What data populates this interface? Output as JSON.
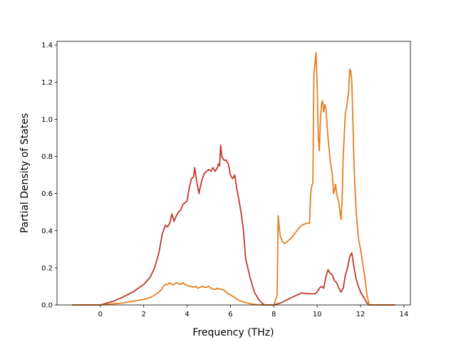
{
  "chart_data": {
    "type": "line",
    "title": "",
    "xlabel": "Frequency (THz)",
    "ylabel": "Partial Density of States",
    "xlim": [
      -2.0,
      14.3
    ],
    "ylim": [
      0.0,
      1.42
    ],
    "xticks": [
      0,
      2,
      4,
      6,
      8,
      10,
      12,
      14
    ],
    "yticks": [
      0.0,
      0.2,
      0.4,
      0.6,
      0.8,
      1.0,
      1.2,
      1.4
    ],
    "xtick_labels": [
      "0",
      "2",
      "4",
      "6",
      "8",
      "10",
      "12",
      "14"
    ],
    "ytick_labels": [
      "0.0",
      "0.2",
      "0.4",
      "0.6",
      "0.8",
      "1.0",
      "1.2",
      "1.4"
    ],
    "grid": false,
    "legend": false,
    "series": [
      {
        "color": "#c0392b",
        "x": [
          -1.3,
          0.0,
          0.3,
          0.6,
          1.0,
          1.5,
          2.0,
          2.3,
          2.5,
          2.7,
          2.85,
          3.0,
          3.1,
          3.2,
          3.3,
          3.4,
          3.5,
          3.6,
          3.7,
          3.8,
          3.9,
          4.0,
          4.1,
          4.2,
          4.3,
          4.35,
          4.45,
          4.55,
          4.6,
          4.7,
          4.8,
          4.9,
          5.0,
          5.1,
          5.2,
          5.3,
          5.4,
          5.45,
          5.5,
          5.55,
          5.6,
          5.7,
          5.8,
          5.9,
          6.0,
          6.1,
          6.2,
          6.3,
          6.4,
          6.5,
          6.6,
          6.7,
          6.9,
          7.1,
          7.3,
          7.45,
          7.6,
          8.0,
          8.3,
          9.0,
          9.3,
          9.6,
          9.8,
          9.9,
          10.0,
          10.1,
          10.2,
          10.3,
          10.4,
          10.5,
          10.6,
          10.7,
          10.8,
          10.9,
          11.0,
          11.1,
          11.2,
          11.3,
          11.4,
          11.5,
          11.55,
          11.6,
          11.7,
          11.8,
          11.9,
          12.0,
          12.1,
          12.2,
          12.3,
          12.4,
          13.6
        ],
        "y": [
          0.0,
          0.0,
          0.01,
          0.02,
          0.04,
          0.07,
          0.11,
          0.15,
          0.2,
          0.28,
          0.38,
          0.43,
          0.42,
          0.44,
          0.49,
          0.45,
          0.48,
          0.5,
          0.51,
          0.54,
          0.55,
          0.56,
          0.63,
          0.68,
          0.69,
          0.74,
          0.66,
          0.6,
          0.63,
          0.68,
          0.71,
          0.72,
          0.73,
          0.72,
          0.74,
          0.72,
          0.74,
          0.76,
          0.75,
          0.86,
          0.8,
          0.78,
          0.78,
          0.76,
          0.7,
          0.68,
          0.7,
          0.62,
          0.56,
          0.49,
          0.4,
          0.25,
          0.15,
          0.07,
          0.03,
          0.01,
          0.0,
          0.0,
          0.01,
          0.05,
          0.065,
          0.06,
          0.06,
          0.06,
          0.07,
          0.09,
          0.1,
          0.09,
          0.15,
          0.19,
          0.17,
          0.16,
          0.13,
          0.12,
          0.09,
          0.07,
          0.09,
          0.16,
          0.2,
          0.26,
          0.27,
          0.28,
          0.2,
          0.14,
          0.1,
          0.07,
          0.05,
          0.03,
          0.01,
          0.0,
          0.0
        ]
      },
      {
        "color": "#e67e22",
        "x": [
          -1.3,
          0.0,
          0.5,
          1.0,
          1.5,
          2.0,
          2.3,
          2.6,
          2.8,
          2.9,
          3.0,
          3.1,
          3.2,
          3.3,
          3.4,
          3.5,
          3.6,
          3.7,
          3.8,
          3.9,
          4.0,
          4.1,
          4.2,
          4.3,
          4.4,
          4.5,
          4.6,
          4.7,
          4.8,
          4.9,
          5.0,
          5.1,
          5.2,
          5.3,
          5.4,
          5.5,
          5.6,
          5.7,
          5.8,
          5.9,
          6.0,
          6.2,
          6.4,
          6.6,
          6.8,
          7.0,
          7.2,
          7.4,
          7.6,
          8.0,
          8.15,
          8.2,
          8.25,
          8.3,
          8.4,
          8.5,
          8.6,
          8.8,
          9.0,
          9.2,
          9.3,
          9.5,
          9.65,
          9.7,
          9.75,
          9.8,
          9.85,
          9.9,
          9.95,
          10.0,
          10.05,
          10.1,
          10.15,
          10.2,
          10.25,
          10.3,
          10.35,
          10.4,
          10.5,
          10.6,
          10.7,
          10.75,
          10.8,
          10.85,
          10.9,
          11.0,
          11.1,
          11.15,
          11.2,
          11.3,
          11.35,
          11.4,
          11.45,
          11.5,
          11.55,
          11.6,
          11.7,
          11.8,
          11.9,
          12.0,
          12.1,
          12.2,
          12.3,
          12.4,
          13.6
        ],
        "y": [
          0.0,
          0.0,
          0.005,
          0.01,
          0.02,
          0.03,
          0.04,
          0.06,
          0.08,
          0.1,
          0.11,
          0.11,
          0.12,
          0.11,
          0.11,
          0.12,
          0.115,
          0.11,
          0.12,
          0.11,
          0.105,
          0.1,
          0.1,
          0.095,
          0.1,
          0.09,
          0.095,
          0.1,
          0.095,
          0.095,
          0.1,
          0.09,
          0.085,
          0.085,
          0.09,
          0.085,
          0.085,
          0.08,
          0.07,
          0.06,
          0.055,
          0.04,
          0.025,
          0.015,
          0.01,
          0.005,
          0.002,
          0.0,
          0.0,
          0.0,
          0.05,
          0.48,
          0.42,
          0.37,
          0.34,
          0.33,
          0.34,
          0.36,
          0.39,
          0.42,
          0.43,
          0.44,
          0.44,
          0.6,
          0.64,
          0.66,
          1.25,
          1.3,
          1.36,
          1.18,
          0.9,
          0.83,
          1.0,
          1.08,
          1.1,
          1.04,
          1.08,
          1.06,
          0.9,
          0.78,
          0.7,
          0.6,
          0.62,
          0.65,
          0.6,
          0.55,
          0.46,
          0.55,
          0.8,
          1.03,
          1.06,
          1.1,
          1.15,
          1.27,
          1.26,
          1.2,
          0.75,
          0.5,
          0.36,
          0.3,
          0.22,
          0.15,
          0.05,
          0.0,
          0.0
        ]
      }
    ]
  }
}
